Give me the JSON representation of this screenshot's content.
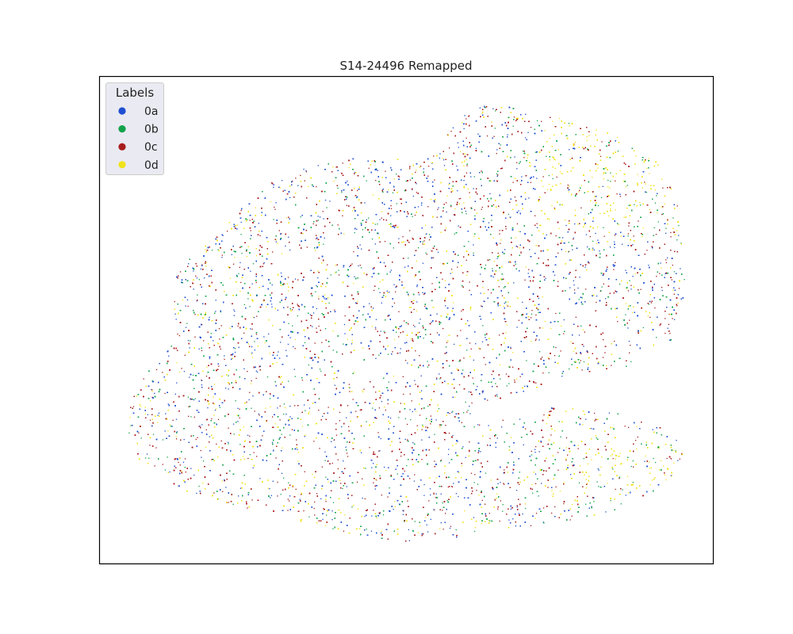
{
  "chart_data": {
    "type": "scatter",
    "title": "S14-24496 Remapped",
    "xlabel": "",
    "ylabel": "",
    "grid": false,
    "axes_ticks": false,
    "legend": {
      "title": "Labels",
      "placement": "top-left",
      "entries": [
        {
          "name": "0a",
          "color": "#1f4fd1"
        },
        {
          "name": "0b",
          "color": "#12a34a"
        },
        {
          "name": "0c",
          "color": "#a81d1d"
        },
        {
          "name": "0d",
          "color": "#f0e21a"
        }
      ]
    },
    "series": [
      {
        "name": "0a",
        "color": "#1f4fd1"
      },
      {
        "name": "0b",
        "color": "#12a34a"
      },
      {
        "name": "0c",
        "color": "#a81d1d"
      },
      {
        "name": "0d",
        "color": "#f0e21a"
      }
    ]
  }
}
